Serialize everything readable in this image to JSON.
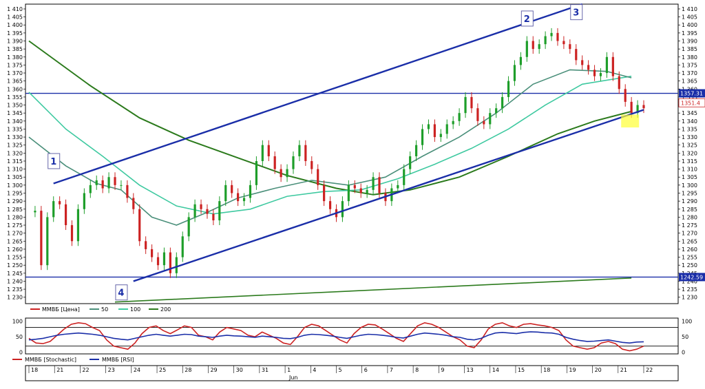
{
  "chart_data": [
    {
      "type": "candlestick",
      "name": "price-panel",
      "y_ticks": [
        1230,
        1235,
        1240,
        1245,
        1250,
        1255,
        1260,
        1265,
        1270,
        1275,
        1280,
        1285,
        1290,
        1295,
        1300,
        1305,
        1310,
        1315,
        1320,
        1325,
        1330,
        1335,
        1340,
        1345,
        1350,
        1355,
        1360,
        1365,
        1370,
        1375,
        1380,
        1385,
        1390,
        1395,
        1400,
        1405,
        1410
      ],
      "ylim": [
        1226,
        1413
      ],
      "x_day_labels": [
        "18",
        "21",
        "22",
        "23",
        "24",
        "25",
        "28",
        "29",
        "30",
        "31",
        "1",
        "4",
        "5",
        "6",
        "7",
        "8",
        "9",
        "13",
        "14",
        "15",
        "18",
        "19",
        "20",
        "21",
        "22"
      ],
      "month_label": "Jun",
      "legend": [
        "ММВБ [Цена]",
        "50",
        "100",
        "200"
      ],
      "series_colors": {
        "price": "#cc2222",
        "ma50": "#4a8f7a",
        "ma100": "#3ec9a0",
        "ma200": "#2b7a1c",
        "channel": "#1a2ea8",
        "level": "#1a2ea8"
      },
      "price_path": [
        [
          0,
          1283
        ],
        [
          1,
          1284
        ],
        [
          2,
          1250
        ],
        [
          3,
          1280
        ],
        [
          4,
          1290
        ],
        [
          5,
          1288
        ],
        [
          6,
          1275
        ],
        [
          7,
          1265
        ],
        [
          8,
          1285
        ],
        [
          9,
          1295
        ],
        [
          10,
          1300
        ],
        [
          11,
          1303
        ],
        [
          12,
          1298
        ],
        [
          13,
          1305
        ],
        [
          14,
          1300
        ],
        [
          15,
          1300
        ],
        [
          16,
          1292
        ],
        [
          17,
          1285
        ],
        [
          18,
          1265
        ],
        [
          19,
          1260
        ],
        [
          20,
          1255
        ],
        [
          21,
          1250
        ],
        [
          22,
          1258
        ],
        [
          23,
          1245
        ],
        [
          24,
          1255
        ],
        [
          25,
          1268
        ],
        [
          26,
          1280
        ],
        [
          27,
          1288
        ],
        [
          28,
          1285
        ],
        [
          29,
          1282
        ],
        [
          30,
          1278
        ],
        [
          31,
          1290
        ],
        [
          32,
          1300
        ],
        [
          33,
          1295
        ],
        [
          34,
          1290
        ],
        [
          35,
          1292
        ],
        [
          36,
          1300
        ],
        [
          37,
          1315
        ],
        [
          38,
          1325
        ],
        [
          39,
          1318
        ],
        [
          40,
          1310
        ],
        [
          41,
          1305
        ],
        [
          42,
          1310
        ],
        [
          43,
          1318
        ],
        [
          44,
          1325
        ],
        [
          45,
          1315
        ],
        [
          46,
          1310
        ],
        [
          47,
          1300
        ],
        [
          48,
          1290
        ],
        [
          49,
          1285
        ],
        [
          50,
          1280
        ],
        [
          51,
          1290
        ],
        [
          52,
          1300
        ],
        [
          53,
          1298
        ],
        [
          54,
          1295
        ],
        [
          55,
          1297
        ],
        [
          56,
          1305
        ],
        [
          57,
          1295
        ],
        [
          58,
          1290
        ],
        [
          59,
          1298
        ],
        [
          60,
          1300
        ],
        [
          61,
          1310
        ],
        [
          62,
          1318
        ],
        [
          63,
          1325
        ],
        [
          64,
          1335
        ],
        [
          65,
          1338
        ],
        [
          66,
          1330
        ],
        [
          67,
          1332
        ],
        [
          68,
          1338
        ],
        [
          69,
          1340
        ],
        [
          70,
          1345
        ],
        [
          71,
          1355
        ],
        [
          72,
          1348
        ],
        [
          73,
          1340
        ],
        [
          74,
          1338
        ],
        [
          75,
          1345
        ],
        [
          76,
          1348
        ],
        [
          77,
          1355
        ],
        [
          78,
          1365
        ],
        [
          79,
          1375
        ],
        [
          80,
          1380
        ],
        [
          81,
          1390
        ],
        [
          82,
          1385
        ],
        [
          83,
          1388
        ],
        [
          84,
          1393
        ],
        [
          85,
          1395
        ],
        [
          86,
          1390
        ],
        [
          87,
          1388
        ],
        [
          88,
          1385
        ],
        [
          89,
          1378
        ],
        [
          90,
          1375
        ],
        [
          91,
          1372
        ],
        [
          92,
          1368
        ],
        [
          93,
          1370
        ],
        [
          94,
          1380
        ],
        [
          95,
          1368
        ],
        [
          96,
          1360
        ],
        [
          97,
          1352
        ],
        [
          98,
          1345
        ],
        [
          99,
          1350
        ],
        [
          100,
          1348
        ]
      ],
      "ma50_path": [
        [
          0,
          1330
        ],
        [
          6,
          1312
        ],
        [
          11,
          1301
        ],
        [
          15,
          1297
        ],
        [
          20,
          1280
        ],
        [
          24,
          1275
        ],
        [
          29,
          1283
        ],
        [
          34,
          1292
        ],
        [
          40,
          1298
        ],
        [
          46,
          1303
        ],
        [
          52,
          1300
        ],
        [
          58,
          1305
        ],
        [
          64,
          1318
        ],
        [
          70,
          1330
        ],
        [
          76,
          1345
        ],
        [
          82,
          1363
        ],
        [
          88,
          1372
        ],
        [
          94,
          1371
        ],
        [
          98,
          1367
        ]
      ],
      "ma100_path": [
        [
          0,
          1358
        ],
        [
          6,
          1335
        ],
        [
          12,
          1318
        ],
        [
          18,
          1300
        ],
        [
          24,
          1287
        ],
        [
          30,
          1282
        ],
        [
          36,
          1285
        ],
        [
          42,
          1293
        ],
        [
          48,
          1296
        ],
        [
          54,
          1297
        ],
        [
          60,
          1304
        ],
        [
          66,
          1313
        ],
        [
          72,
          1323
        ],
        [
          78,
          1335
        ],
        [
          84,
          1350
        ],
        [
          90,
          1363
        ],
        [
          98,
          1368
        ]
      ],
      "ma200_path": [
        [
          0,
          1390
        ],
        [
          10,
          1362
        ],
        [
          18,
          1342
        ],
        [
          26,
          1328
        ],
        [
          34,
          1317
        ],
        [
          42,
          1306
        ],
        [
          50,
          1298
        ],
        [
          56,
          1294
        ],
        [
          62,
          1297
        ],
        [
          70,
          1305
        ],
        [
          78,
          1318
        ],
        [
          86,
          1332
        ],
        [
          92,
          1340
        ],
        [
          98,
          1346
        ]
      ],
      "ma200_lower_path": [
        [
          14,
          1227
        ],
        [
          98,
          1242
        ]
      ],
      "channel_upper": [
        [
          4,
          1301
        ],
        [
          90,
          1413
        ]
      ],
      "channel_lower": [
        [
          17,
          1240
        ],
        [
          100,
          1347
        ]
      ],
      "hline_upper": 1357.31,
      "hline_lower": 1242.59,
      "price_tag_upper": "1357.31",
      "price_tag_lower": "1242.59",
      "last_price_label": "1351.4",
      "annotations": [
        "1",
        "2",
        "3",
        "4"
      ]
    },
    {
      "type": "line",
      "name": "oscillator-panel",
      "y_ticks": [
        0,
        50,
        100
      ],
      "ylim": [
        -5,
        110
      ],
      "legend": [
        "ММВБ [Stochastic]",
        "ММВБ [RSI]"
      ],
      "series_colors": {
        "stochastic": "#cc2222",
        "rsi": "#1a2ea8"
      },
      "stochastic": [
        45,
        30,
        28,
        35,
        55,
        75,
        90,
        95,
        92,
        80,
        70,
        40,
        20,
        15,
        10,
        30,
        60,
        80,
        85,
        70,
        60,
        72,
        85,
        80,
        55,
        50,
        40,
        65,
        80,
        75,
        70,
        55,
        50,
        65,
        55,
        45,
        30,
        25,
        50,
        80,
        90,
        85,
        70,
        55,
        40,
        30,
        60,
        80,
        90,
        88,
        75,
        60,
        45,
        35,
        60,
        85,
        95,
        90,
        80,
        65,
        50,
        40,
        20,
        15,
        40,
        75,
        90,
        95,
        85,
        80,
        90,
        92,
        88,
        85,
        80,
        70,
        40,
        20,
        15,
        10,
        15,
        30,
        35,
        28,
        10,
        5,
        10,
        20
      ],
      "rsi": [
        40,
        42,
        45,
        50,
        55,
        58,
        60,
        62,
        60,
        58,
        55,
        50,
        45,
        42,
        40,
        45,
        50,
        55,
        58,
        55,
        52,
        55,
        58,
        57,
        52,
        50,
        48,
        52,
        55,
        53,
        52,
        50,
        48,
        52,
        50,
        48,
        45,
        44,
        48,
        55,
        58,
        57,
        55,
        52,
        48,
        45,
        50,
        55,
        58,
        57,
        55,
        52,
        48,
        46,
        52,
        58,
        62,
        60,
        58,
        55,
        50,
        48,
        42,
        40,
        45,
        55,
        62,
        64,
        62,
        60,
        64,
        66,
        65,
        63,
        62,
        58,
        48,
        42,
        38,
        35,
        36,
        38,
        40,
        36,
        32,
        30,
        33,
        34
      ]
    }
  ]
}
